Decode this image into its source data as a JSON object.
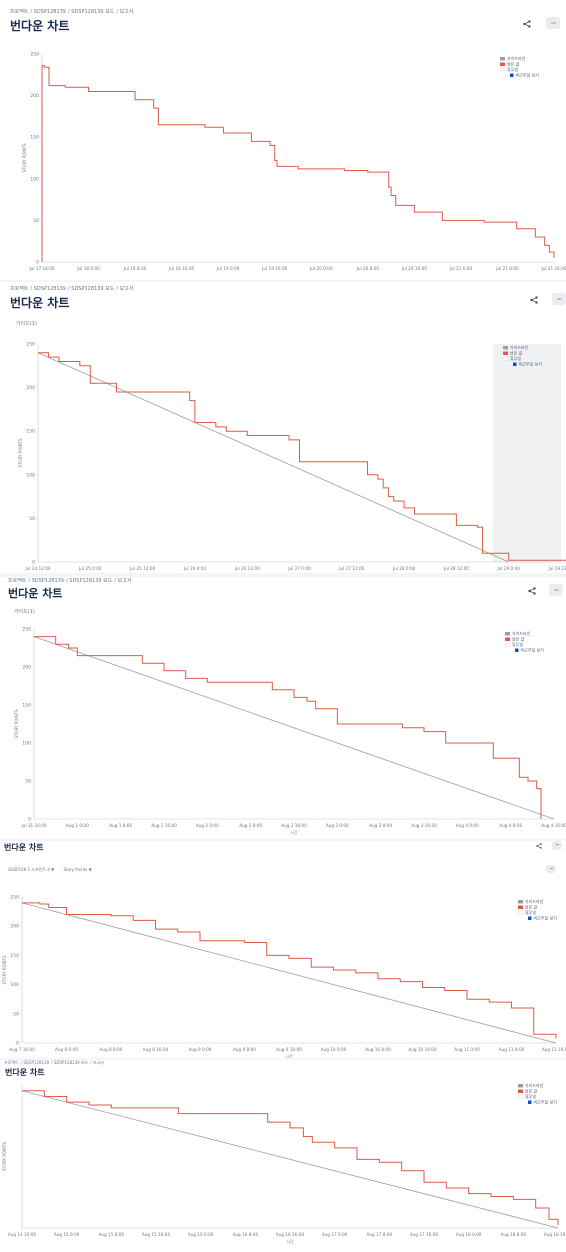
{
  "colors": {
    "burndown": "#de5b49",
    "guideline": "#9e9e9e",
    "axis": "#c1c7d0",
    "legend_box": "#ebecf0"
  },
  "icons": {
    "share": "share-icon",
    "more": "more-icon",
    "check": "checkbox-checked-icon"
  },
  "panels": [
    {
      "breadcrumb": [
        "프로젝트",
        "SDSP128139",
        "SDSP128139 보드",
        "보고서"
      ],
      "title": "번다운 차트",
      "hint": ""
    },
    {
      "breadcrumb": [
        "프로젝트",
        "SDSP128139",
        "SDSP128139 보드",
        "보고서"
      ],
      "title": "번다운 차트",
      "hint": "가이드(1)"
    },
    {
      "breadcrumb": [
        "프로젝트",
        "SDSP128139",
        "SDSP128139 보드",
        "보고서"
      ],
      "title": "번다운 차트",
      "hint": "가이드(1)"
    },
    {
      "breadcrumb": [],
      "title": "번다운 차트",
      "hint": "",
      "filters": [
        "SDSP128 1 스프린트 4 ▼",
        "Story Points ▼"
      ]
    },
    {
      "breadcrumb": [
        "프로젝트",
        "SDSP128139",
        "SDSP128139 보드",
        "보고서"
      ],
      "title": "번다운 차트",
      "hint": ""
    }
  ],
  "legend": {
    "guideline": "가이드라인",
    "remaining": "남은 값",
    "non_working": "휴무일",
    "show_non_working": "비근무일 보기"
  },
  "chart_data": [
    {
      "type": "line",
      "ylabel": "STORY POINTS",
      "ylim": [
        0,
        250
      ],
      "yticks": [
        0,
        50,
        100,
        150,
        200,
        250
      ],
      "xticks": [
        "Jul 17 16:00",
        "Jul 18 0:00",
        "Jul 18 8:00",
        "Jul 18 16:00",
        "Jul 19 0:00",
        "Jul 19 16:00",
        "Jul 20 0:00",
        "Jul 20 8:00",
        "Jul 20 16:00",
        "Jul 21 0:00",
        "Jul 21 8:00",
        "Jul 21 16:00"
      ],
      "show_guideline": false,
      "series": [
        {
          "x": [
            0,
            0.0,
            0.05,
            0.15,
            0.15,
            0.3,
            0.3,
            0.5,
            1.0,
            1.0,
            1.5,
            1.5,
            2.0,
            2.0,
            2.4,
            2.5,
            2.5,
            2.8,
            3.5,
            3.5,
            3.9,
            4.5,
            4.5,
            4.9,
            5.0,
            5.0,
            5.05,
            5.5,
            5.5,
            6.5,
            6.5,
            7.0,
            7.0,
            7.35,
            7.45,
            7.5,
            7.6,
            7.6,
            8.0,
            8.0,
            8.6,
            8.6,
            9.2,
            9.5,
            9.5,
            10.2,
            10.2,
            10.5,
            10.6,
            10.8,
            10.9,
            11.0
          ],
          "y": [
            0,
            236,
            234,
            232,
            212,
            212,
            212,
            210,
            210,
            205,
            205,
            205,
            204,
            195,
            185,
            183,
            165,
            165,
            165,
            162,
            155,
            150,
            145,
            140,
            138,
            122,
            115,
            115,
            112,
            112,
            110,
            110,
            108,
            108,
            90,
            80,
            75,
            68,
            68,
            60,
            55,
            50,
            50,
            48,
            48,
            45,
            40,
            40,
            30,
            20,
            12,
            5
          ]
        }
      ]
    },
    {
      "type": "line",
      "ylabel": "STORY POINTS",
      "ylim": [
        0,
        250
      ],
      "yticks": [
        0,
        50,
        100,
        150,
        200,
        250
      ],
      "xticks": [
        "Jul 24 12:00",
        "Jul 25 0:00",
        "Jul 25 12:00",
        "Jul 26 0:00",
        "Jul 26 12:00",
        "Jul 27 0:00",
        "Jul 27 12:00",
        "Jul 28 0:00",
        "Jul 28 12:00",
        "Jul 29 0:00",
        "Jul 29 12:00"
      ],
      "non_working_from": 8.7,
      "show_guideline": true,
      "guideline": [
        [
          0,
          240
        ],
        [
          9.0,
          0
        ]
      ],
      "series": [
        {
          "x": [
            0,
            0.2,
            0.4,
            0.8,
            1.0,
            1.0,
            1.5,
            1.5,
            2.4,
            2.9,
            3.0,
            3.0,
            3.4,
            3.6,
            4.0,
            4.0,
            4.5,
            4.8,
            5.0,
            5.0,
            5.5,
            5.5,
            6.2,
            6.3,
            6.5,
            6.6,
            6.7,
            6.8,
            7.0,
            7.2,
            7.2,
            8.0,
            8.0,
            8.4,
            8.5,
            8.5,
            9.0,
            9.0,
            11.0
          ],
          "y": [
            240,
            235,
            230,
            225,
            215,
            205,
            200,
            195,
            195,
            185,
            175,
            160,
            155,
            150,
            148,
            145,
            145,
            140,
            130,
            115,
            115,
            115,
            115,
            100,
            95,
            85,
            75,
            70,
            62,
            58,
            55,
            55,
            42,
            40,
            30,
            10,
            10,
            2,
            0
          ]
        }
      ]
    },
    {
      "type": "line",
      "ylabel": "STORY POINTS",
      "xlabel": "시간",
      "ylim": [
        0,
        250
      ],
      "yticks": [
        0,
        50,
        100,
        150,
        200,
        250
      ],
      "xticks": [
        "Jul 31 16:00",
        "Aug 1 0:00",
        "Aug 1 8:00",
        "Aug 1 16:00",
        "Aug 2 0:00",
        "Aug 2 8:00",
        "Aug 2 16:00",
        "Aug 3 0:00",
        "Aug 3 8:00",
        "Aug 3 16:00",
        "Aug 4 0:00",
        "Aug 4 8:00",
        "Aug 4 16:00"
      ],
      "show_guideline": true,
      "guideline": [
        [
          0,
          240
        ],
        [
          12.0,
          0
        ]
      ],
      "series": [
        {
          "x": [
            0,
            0.5,
            0.8,
            1.0,
            1.0,
            2.5,
            2.5,
            3.0,
            3.5,
            3.5,
            4.0,
            5.0,
            5.5,
            5.5,
            6.0,
            6.3,
            6.5,
            7.0,
            7.0,
            8.5,
            8.5,
            9.0,
            9.5,
            9.5,
            10.6,
            10.6,
            11.2,
            11.4,
            11.6,
            11.7,
            11.7
          ],
          "y": [
            240,
            230,
            225,
            222,
            215,
            215,
            205,
            195,
            195,
            185,
            180,
            180,
            175,
            170,
            160,
            155,
            145,
            140,
            125,
            125,
            120,
            115,
            110,
            100,
            100,
            80,
            55,
            50,
            40,
            30,
            0
          ]
        }
      ]
    },
    {
      "type": "line",
      "xlabel": "시간",
      "ylabel": "STORY POINTS",
      "ylim": [
        0,
        250
      ],
      "yticks": [
        0,
        50,
        100,
        150,
        200,
        250
      ],
      "xticks": [
        "Aug 7 16:00",
        "Aug 8 0:00",
        "Aug 8 8:00",
        "Aug 8 16:00",
        "Aug 9 0:00",
        "Aug 9 8:00",
        "Aug 9 16:00",
        "Aug 10 0:00",
        "Aug 10 8:00",
        "Aug 10 16:00",
        "Aug 11 0:00",
        "Aug 11 8:00",
        "Aug 11 16:00"
      ],
      "show_guideline": true,
      "guideline": [
        [
          0,
          240
        ],
        [
          12.0,
          0
        ]
      ],
      "series": [
        {
          "x": [
            0,
            0.4,
            0.6,
            1.0,
            1.0,
            2.0,
            2.5,
            3.0,
            3.0,
            3.5,
            4.0,
            4.0,
            5.0,
            5.5,
            5.5,
            6.0,
            6.5,
            6.5,
            7.0,
            7.5,
            8.0,
            8.0,
            8.5,
            9.0,
            9.5,
            10.0,
            10.0,
            10.5,
            11.0,
            11.5,
            11.5,
            12.0
          ],
          "y": [
            240,
            238,
            232,
            228,
            220,
            218,
            210,
            205,
            195,
            190,
            185,
            175,
            172,
            165,
            150,
            145,
            140,
            130,
            125,
            120,
            120,
            110,
            105,
            95,
            90,
            85,
            75,
            70,
            60,
            50,
            15,
            8
          ]
        }
      ]
    },
    {
      "type": "line",
      "xlabel": "시간",
      "ylabel": "STORY POINTS",
      "ylim": [
        0,
        250
      ],
      "xticks": [
        "Aug 14 16:00",
        "Aug 15 0:00",
        "Aug 15 8:00",
        "Aug 15 16:00",
        "Aug 16 0:00",
        "Aug 16 8:00",
        "Aug 16 16:00",
        "Aug 17 0:00",
        "Aug 17 8:00",
        "Aug 17 16:00",
        "Aug 18 0:00",
        "Aug 18 8:00",
        "Aug 18 16:00"
      ],
      "show_guideline": true,
      "guideline": [
        [
          0,
          240
        ],
        [
          12.0,
          0
        ]
      ],
      "series": [
        {
          "x": [
            0,
            0.5,
            1.0,
            1.5,
            2.0,
            2.0,
            3.5,
            3.5,
            5.5,
            5.5,
            6.0,
            6.3,
            6.5,
            7.0,
            7.5,
            7.5,
            8.0,
            8.5,
            9.0,
            9.0,
            9.5,
            10.0,
            10.5,
            11.0,
            11.5,
            11.8,
            12.0
          ],
          "y": [
            240,
            230,
            220,
            215,
            210,
            210,
            210,
            200,
            200,
            185,
            175,
            160,
            150,
            140,
            135,
            120,
            115,
            100,
            95,
            80,
            70,
            60,
            55,
            50,
            35,
            15,
            5
          ]
        }
      ]
    }
  ]
}
